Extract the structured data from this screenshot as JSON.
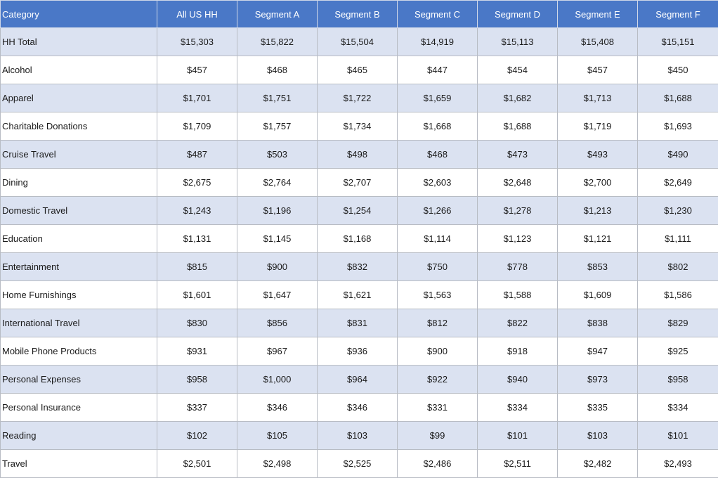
{
  "table": {
    "headers": [
      "Category",
      "All US HH",
      "Segment A",
      "Segment B",
      "Segment C",
      "Segment D",
      "Segment E",
      "Segment F"
    ],
    "rows": [
      {
        "category": "HH Total",
        "values": [
          "$15,303",
          "$15,822",
          "$15,504",
          "$14,919",
          "$15,113",
          "$15,408",
          "$15,151"
        ]
      },
      {
        "category": "Alcohol",
        "values": [
          "$457",
          "$468",
          "$465",
          "$447",
          "$454",
          "$457",
          "$450"
        ]
      },
      {
        "category": "Apparel",
        "values": [
          "$1,701",
          "$1,751",
          "$1,722",
          "$1,659",
          "$1,682",
          "$1,713",
          "$1,688"
        ]
      },
      {
        "category": "Charitable Donations",
        "values": [
          "$1,709",
          "$1,757",
          "$1,734",
          "$1,668",
          "$1,688",
          "$1,719",
          "$1,693"
        ]
      },
      {
        "category": "Cruise Travel",
        "values": [
          "$487",
          "$503",
          "$498",
          "$468",
          "$473",
          "$493",
          "$490"
        ]
      },
      {
        "category": "Dining",
        "values": [
          "$2,675",
          "$2,764",
          "$2,707",
          "$2,603",
          "$2,648",
          "$2,700",
          "$2,649"
        ]
      },
      {
        "category": "Domestic Travel",
        "values": [
          "$1,243",
          "$1,196",
          "$1,254",
          "$1,266",
          "$1,278",
          "$1,213",
          "$1,230"
        ]
      },
      {
        "category": "Education",
        "values": [
          "$1,131",
          "$1,145",
          "$1,168",
          "$1,114",
          "$1,123",
          "$1,121",
          "$1,111"
        ]
      },
      {
        "category": "Entertainment",
        "values": [
          "$815",
          "$900",
          "$832",
          "$750",
          "$778",
          "$853",
          "$802"
        ]
      },
      {
        "category": "Home Furnishings",
        "values": [
          "$1,601",
          "$1,647",
          "$1,621",
          "$1,563",
          "$1,588",
          "$1,609",
          "$1,586"
        ]
      },
      {
        "category": "International Travel",
        "values": [
          "$830",
          "$856",
          "$831",
          "$812",
          "$822",
          "$838",
          "$829"
        ]
      },
      {
        "category": "Mobile Phone Products",
        "values": [
          "$931",
          "$967",
          "$936",
          "$900",
          "$918",
          "$947",
          "$925"
        ]
      },
      {
        "category": "Personal Expenses",
        "values": [
          "$958",
          "$1,000",
          "$964",
          "$922",
          "$940",
          "$973",
          "$958"
        ]
      },
      {
        "category": "Personal Insurance",
        "values": [
          "$337",
          "$346",
          "$346",
          "$331",
          "$334",
          "$335",
          "$334"
        ]
      },
      {
        "category": "Reading",
        "values": [
          "$102",
          "$105",
          "$103",
          "$99",
          "$101",
          "$103",
          "$101"
        ]
      },
      {
        "category": "Travel",
        "values": [
          "$2,501",
          "$2,498",
          "$2,525",
          "$2,486",
          "$2,511",
          "$2,482",
          "$2,493"
        ]
      }
    ]
  },
  "colors": {
    "header_bg": "#4a78c7",
    "header_text": "#ffffff",
    "row_band": "#dbe2f1",
    "row_plain": "#ffffff",
    "grid": "#b8bcc4"
  }
}
